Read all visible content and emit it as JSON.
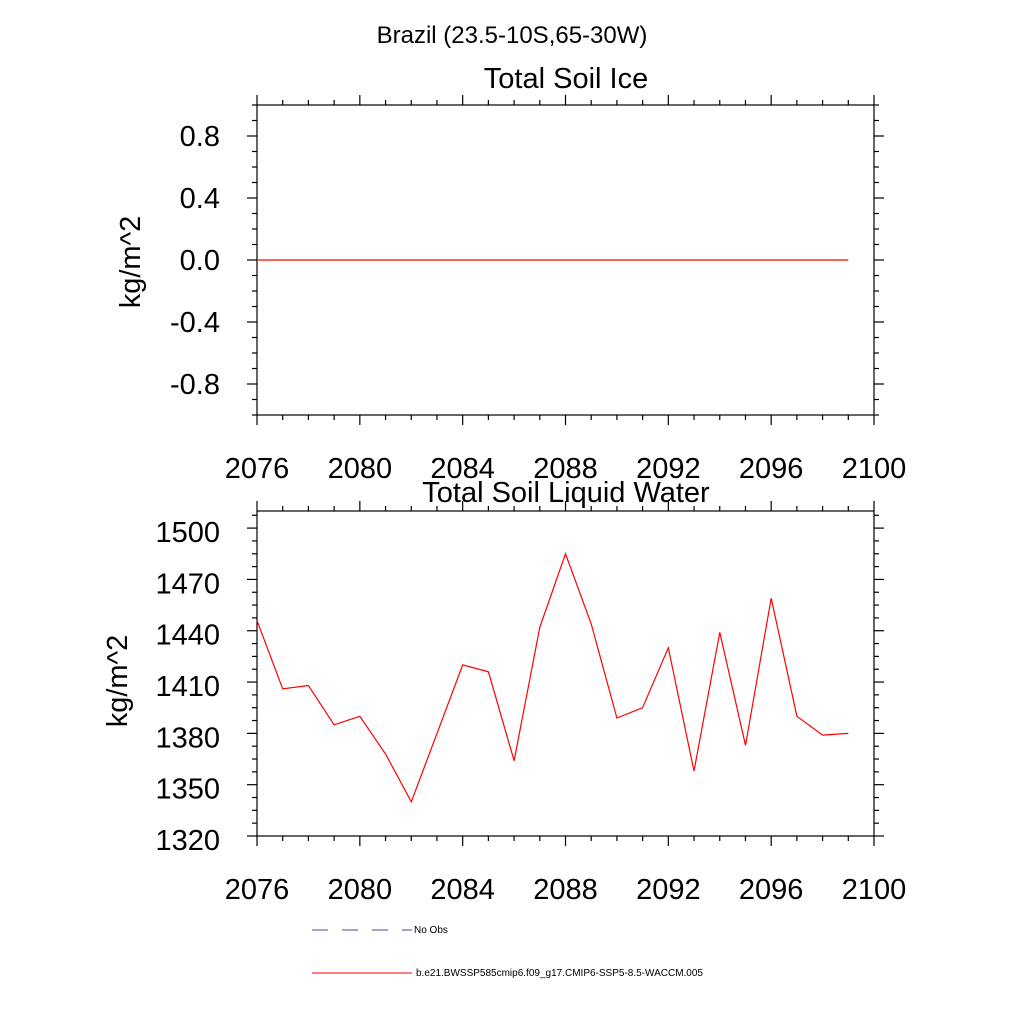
{
  "figure": {
    "suptitle": "Brazil (23.5-10S,65-30W)"
  },
  "chart_data": [
    {
      "type": "line",
      "title": "Total Soil Ice",
      "xlabel": "",
      "ylabel": "kg/m^2",
      "xlim": [
        2076,
        2100
      ],
      "ylim": [
        -1.0,
        1.0
      ],
      "xticks": [
        2076,
        2080,
        2084,
        2088,
        2092,
        2096,
        2100
      ],
      "xtick_labels": [
        "2076",
        "2080",
        "2084",
        "2088",
        "2092",
        "2096",
        "2100"
      ],
      "yticks": [
        0.8,
        0.4,
        0.0,
        -0.4,
        -0.8
      ],
      "ytick_labels": [
        "0.8",
        "0.4",
        "0.0",
        "-0.4",
        "-0.8"
      ],
      "grid": false,
      "series": [
        {
          "name": "b.e21.BWSSP585cmip6.f09_g17.CMIP6-SSP5-8.5-WACCM.005",
          "color": "#ff0000",
          "x": [
            2076,
            2077,
            2078,
            2079,
            2080,
            2081,
            2082,
            2083,
            2084,
            2085,
            2086,
            2087,
            2088,
            2089,
            2090,
            2091,
            2092,
            2093,
            2094,
            2095,
            2096,
            2097,
            2098,
            2099
          ],
          "values": [
            0,
            0,
            0,
            0,
            0,
            0,
            0,
            0,
            0,
            0,
            0,
            0,
            0,
            0,
            0,
            0,
            0,
            0,
            0,
            0,
            0,
            0,
            0,
            0
          ]
        }
      ]
    },
    {
      "type": "line",
      "title": "Total Soil Liquid Water",
      "xlabel": "",
      "ylabel": "kg/m^2",
      "xlim": [
        2076,
        2100
      ],
      "ylim": [
        1320,
        1510
      ],
      "xticks": [
        2076,
        2080,
        2084,
        2088,
        2092,
        2096,
        2100
      ],
      "xtick_labels": [
        "2076",
        "2080",
        "2084",
        "2088",
        "2092",
        "2096",
        "2100"
      ],
      "yticks": [
        1500,
        1470,
        1440,
        1410,
        1380,
        1350,
        1320
      ],
      "ytick_labels": [
        "1500",
        "1470",
        "1440",
        "1410",
        "1380",
        "1350",
        "1320"
      ],
      "grid": false,
      "series": [
        {
          "name": "b.e21.BWSSP585cmip6.f09_g17.CMIP6-SSP5-8.5-WACCM.005",
          "color": "#ff0000",
          "x": [
            2076,
            2077,
            2078,
            2079,
            2080,
            2081,
            2082,
            2083,
            2084,
            2085,
            2086,
            2087,
            2088,
            2089,
            2090,
            2091,
            2092,
            2093,
            2094,
            2095,
            2096,
            2097,
            2098,
            2099
          ],
          "values": [
            1446,
            1406,
            1408,
            1385,
            1390,
            1368,
            1340,
            1380,
            1420,
            1416,
            1364,
            1442,
            1485,
            1444,
            1389,
            1395,
            1430,
            1358,
            1439,
            1373,
            1459,
            1390,
            1379,
            1380
          ]
        }
      ]
    }
  ],
  "legend": {
    "entries": [
      {
        "label": "No Obs",
        "color": "#4a4a8a",
        "style": "dashed"
      },
      {
        "label": "b.e21.BWSSP585cmip6.f09_g17.CMIP6-SSP5-8.5-WACCM.005",
        "color": "#ff0000",
        "style": "solid"
      }
    ]
  }
}
